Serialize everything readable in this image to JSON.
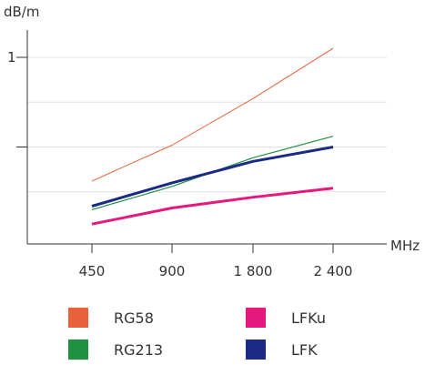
{
  "chart_data": {
    "type": "line",
    "title": "",
    "xlabel": "MHz",
    "ylabel": "dB/m",
    "categories": [
      "450",
      "900",
      "1 800",
      "2 400"
    ],
    "y_ticks": [
      {
        "value": 1,
        "label": "1"
      },
      {
        "value": 0.5,
        "label": ""
      }
    ],
    "ylim": [
      0,
      1.2
    ],
    "grid": "horizontal",
    "legend_position": "bottom",
    "series": [
      {
        "name": "RG58",
        "color": "#e8613a",
        "values": [
          0.31,
          0.51,
          0.77,
          1.05
        ]
      },
      {
        "name": "RG213",
        "color": "#1f9140",
        "values": [
          0.15,
          0.28,
          0.44,
          0.56
        ]
      },
      {
        "name": "LFKu",
        "color": "#e5197d",
        "values": [
          0.07,
          0.16,
          0.22,
          0.27
        ]
      },
      {
        "name": "LFK",
        "color": "#1b2a84",
        "values": [
          0.17,
          0.3,
          0.42,
          0.5
        ]
      }
    ]
  }
}
